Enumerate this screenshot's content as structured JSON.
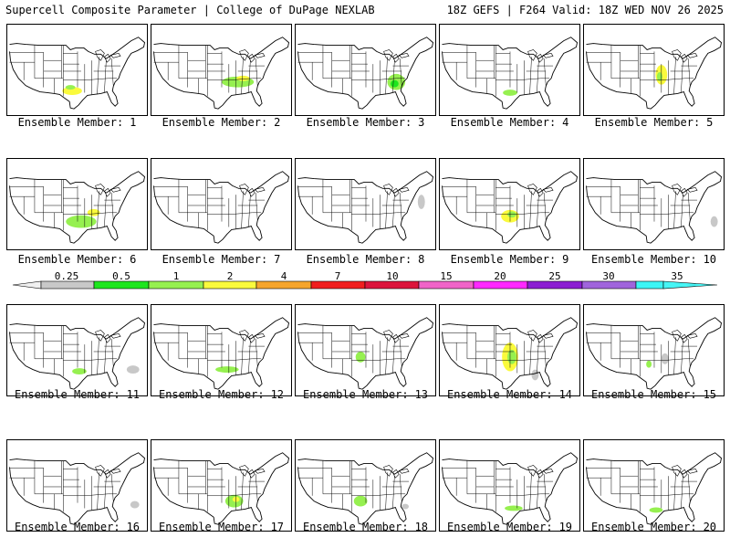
{
  "header": {
    "left_title": "Supercell Composite Parameter | College of DuPage NEXLAB",
    "right_title": "18Z GEFS | F264 Valid: 18Z WED NOV 26 2025"
  },
  "panel_label_prefix": "Ensemble Member:",
  "members": [
    {
      "num": "1",
      "levels": [
        "2",
        "1"
      ]
    },
    {
      "num": "2",
      "levels": [
        "1",
        "2"
      ]
    },
    {
      "num": "3",
      "levels": [
        "1",
        "0.5"
      ]
    },
    {
      "num": "4",
      "levels": [
        "1"
      ]
    },
    {
      "num": "5",
      "levels": [
        "2",
        "1"
      ]
    },
    {
      "num": "6",
      "levels": [
        "1",
        "2"
      ]
    },
    {
      "num": "7",
      "levels": []
    },
    {
      "num": "8",
      "levels": [
        "0.25"
      ]
    },
    {
      "num": "9",
      "levels": [
        "2",
        "1"
      ]
    },
    {
      "num": "10",
      "levels": [
        "0.25"
      ]
    },
    {
      "num": "11",
      "levels": [
        "1",
        "0.25"
      ]
    },
    {
      "num": "12",
      "levels": [
        "1"
      ]
    },
    {
      "num": "13",
      "levels": [
        "1"
      ]
    },
    {
      "num": "14",
      "levels": [
        "2",
        "1",
        "0.25"
      ]
    },
    {
      "num": "15",
      "levels": [
        "0.25",
        "1"
      ]
    },
    {
      "num": "16",
      "levels": [
        "0.25"
      ]
    },
    {
      "num": "17",
      "levels": [
        "1",
        "2"
      ]
    },
    {
      "num": "18",
      "levels": [
        "1",
        "0.25"
      ]
    },
    {
      "num": "19",
      "levels": [
        "1"
      ]
    },
    {
      "num": "20",
      "levels": [
        "1"
      ]
    }
  ],
  "colorbar": {
    "labels": [
      "0.25",
      "0.5",
      "1",
      "2",
      "4",
      "7",
      "10",
      "15",
      "20",
      "25",
      "30",
      "35"
    ],
    "colors": {
      "0.25": "#c8c8c8",
      "0.5": "#1ee61e",
      "1": "#96f050",
      "2": "#fafa3c",
      "4": "#f5a52d",
      "7": "#f01e1e",
      "10": "#dc143c",
      "15": "#f064c8",
      "20": "#ff28ff",
      "25": "#8c1ed2",
      "30": "#a064dc",
      "35": "#3cf5f5"
    },
    "low_color": "#f0f0f0",
    "high_color": "#46f5f5"
  }
}
